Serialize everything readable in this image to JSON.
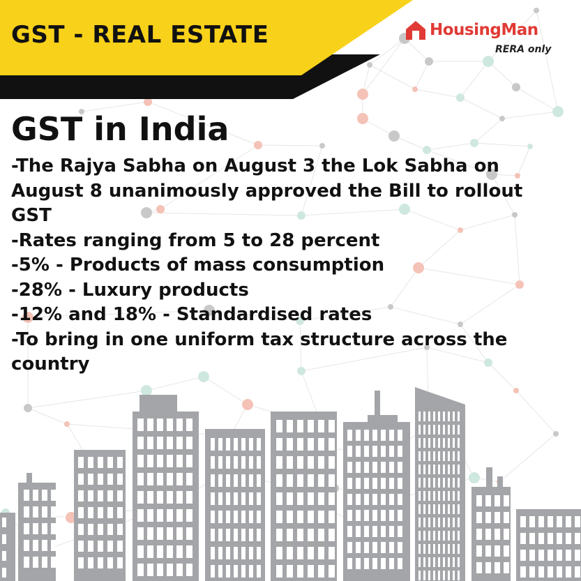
{
  "banner": {
    "title": "GST - REAL ESTATE",
    "colors": {
      "yellow": "#f8d11a",
      "black": "#111111"
    }
  },
  "brand": {
    "name": "HousingMan",
    "tagline": "RERA only",
    "logo_icon": "house-icon",
    "color": "#e03a34"
  },
  "content": {
    "heading": "GST in India",
    "points": [
      "-The Rajya Sabha on August 3 the Lok Sabha on August 8 unanimously approved the Bill to rollout GST",
      "-Rates ranging from 5 to 28 percent",
      "-5% - Products of mass consumption",
      "-28% - Luxury products",
      "-12% and 18% - Standardised rates",
      "-To bring in one uniform tax structure across the country"
    ]
  },
  "decoration": {
    "skyline_color": "#a4a5a8",
    "window_color": "#ffffff",
    "network_line_color": "#e6e6e6",
    "node_colors": [
      "#c8c8c8",
      "#f4c2b6",
      "#cfe8df"
    ]
  }
}
